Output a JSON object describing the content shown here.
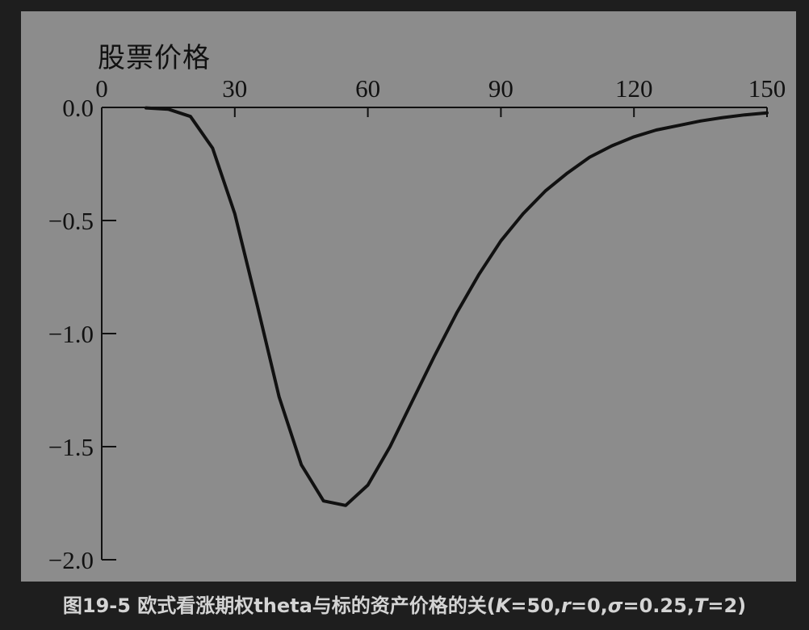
{
  "caption": {
    "prefix": "图19-5 欧式看涨期权theta与标的资产价格的关(",
    "K": "K",
    "K_val": "=50,",
    "r": "r",
    "r_val": "=0,",
    "sigma": "σ",
    "sigma_val": "=0.25,",
    "T": "T",
    "T_val": "=2)"
  },
  "chart_data": {
    "type": "line",
    "title": "",
    "xlabel": "股票价格",
    "ylabel": "",
    "xlim": [
      0,
      150
    ],
    "ylim": [
      -2.0,
      0.0
    ],
    "x_axis_position": "top",
    "grid": false,
    "x_ticks": [
      "0",
      "30",
      "60",
      "90",
      "120",
      "150"
    ],
    "y_ticks": [
      "0.0",
      "−0.5",
      "−1.0",
      "−1.5",
      "−2.0"
    ],
    "series": [
      {
        "color": "#111111",
        "x": [
          10,
          15,
          20,
          25,
          30,
          35,
          40,
          45,
          50,
          55,
          60,
          65,
          70,
          75,
          80,
          85,
          90,
          95,
          100,
          105,
          110,
          115,
          120,
          125,
          130,
          135,
          140,
          145,
          150
        ],
        "y": [
          -0.002,
          -0.008,
          -0.04,
          -0.18,
          -0.47,
          -0.87,
          -1.28,
          -1.58,
          -1.74,
          -1.76,
          -1.67,
          -1.5,
          -1.3,
          -1.1,
          -0.91,
          -0.74,
          -0.59,
          -0.47,
          -0.37,
          -0.29,
          -0.22,
          -0.17,
          -0.13,
          -0.1,
          -0.08,
          -0.06,
          -0.045,
          -0.033,
          -0.024
        ]
      }
    ]
  }
}
